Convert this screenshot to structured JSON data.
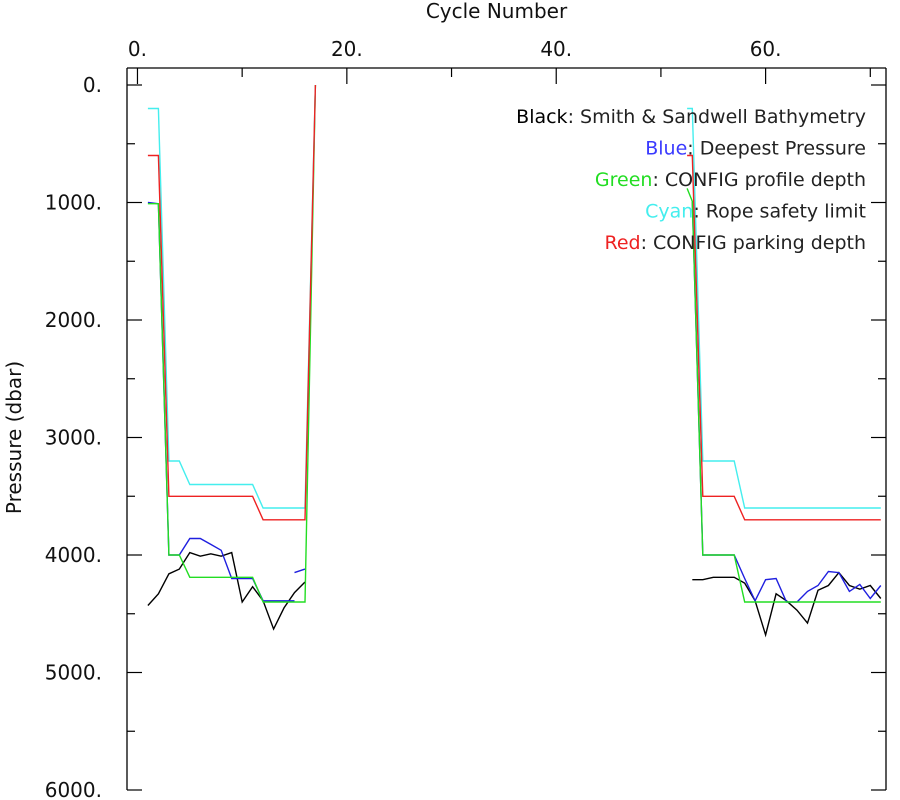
{
  "chart_data": {
    "type": "line",
    "xlabel": "Cycle Number",
    "ylabel": "Pressure (dbar)",
    "xlim": [
      -1,
      71.5
    ],
    "ylim": [
      0,
      6000
    ],
    "y_inverted": true,
    "x_axis_position": "top",
    "x_major_ticks": [
      0,
      20,
      40,
      60
    ],
    "x_tick_labels": [
      "0.",
      "20.",
      "40.",
      "60."
    ],
    "x_minor_ticks": [
      10,
      30,
      50,
      70
    ],
    "y_major_ticks": [
      0,
      1000,
      2000,
      3000,
      4000,
      5000,
      6000
    ],
    "y_tick_labels": [
      "0.",
      "1000.",
      "2000.",
      "3000.",
      "4000.",
      "5000.",
      "6000."
    ],
    "y_minor_ticks": [
      500,
      1500,
      2500,
      3500,
      4500,
      5500
    ],
    "grid": false,
    "legend_position": "top-right",
    "legend": [
      {
        "key": "Black",
        "text": ": Smith & Sandwell Bathymetry",
        "key_color": "#000000"
      },
      {
        "key": "Blue",
        "text": ": Deepest Pressure",
        "key_color": "#3a3aff"
      },
      {
        "key": "Green",
        "text": ": CONFIG profile depth",
        "key_color": "#22dd22"
      },
      {
        "key": "Cyan",
        "text": ": Rope safety limit",
        "key_color": "#44eeee"
      },
      {
        "key": "Red",
        "text": ": CONFIG parking depth",
        "key_color": "#ee2222"
      }
    ],
    "series": [
      {
        "color": "#000000",
        "segments": [
          [
            [
              1,
              4430
            ],
            [
              2,
              4330
            ],
            [
              3,
              4160
            ],
            [
              4,
              4120
            ],
            [
              5,
              3980
            ],
            [
              6,
              4010
            ],
            [
              7,
              3990
            ],
            [
              8,
              4010
            ],
            [
              9,
              3980
            ],
            [
              10,
              4400
            ],
            [
              11,
              4270
            ],
            [
              12,
              4390
            ],
            [
              13,
              4630
            ],
            [
              14,
              4450
            ],
            [
              15,
              4320
            ],
            [
              16,
              4230
            ]
          ],
          [
            [
              53,
              4210
            ],
            [
              54,
              4210
            ],
            [
              55,
              4190
            ],
            [
              56,
              4190
            ],
            [
              57,
              4190
            ],
            [
              58,
              4240
            ],
            [
              59,
              4390
            ],
            [
              60,
              4680
            ],
            [
              61,
              4330
            ],
            [
              62,
              4390
            ],
            [
              63,
              4470
            ],
            [
              64,
              4580
            ],
            [
              65,
              4300
            ],
            [
              66,
              4260
            ],
            [
              67,
              4150
            ],
            [
              68,
              4260
            ],
            [
              69,
              4290
            ],
            [
              70,
              4260
            ],
            [
              71,
              4370
            ]
          ]
        ]
      },
      {
        "color": "#1f1fdf",
        "segments": [
          [
            [
              1,
              1000
            ],
            [
              2,
              1010
            ],
            [
              3,
              4000
            ],
            [
              4,
              4000
            ],
            [
              5,
              3860
            ],
            [
              6,
              3860
            ],
            [
              7,
              3910
            ],
            [
              8,
              3960
            ],
            [
              9,
              4200
            ],
            [
              10,
              4200
            ],
            [
              11,
              4200
            ],
            [
              12,
              4390
            ],
            [
              13,
              4390
            ],
            [
              14,
              4390
            ],
            [
              15,
              4390
            ]
          ],
          [
            [
              15,
              4150
            ],
            [
              16,
              4120
            ]
          ],
          [
            [
              53,
              990
            ],
            [
              54,
              4000
            ],
            [
              55,
              4000
            ],
            [
              56,
              4000
            ],
            [
              57,
              4000
            ],
            [
              58,
              4200
            ],
            [
              59,
              4390
            ],
            [
              60,
              4210
            ],
            [
              61,
              4200
            ],
            [
              62,
              4400
            ],
            [
              63,
              4400
            ],
            [
              64,
              4310
            ],
            [
              65,
              4260
            ],
            [
              66,
              4140
            ],
            [
              67,
              4150
            ],
            [
              68,
              4310
            ],
            [
              69,
              4250
            ],
            [
              70,
              4370
            ],
            [
              71,
              4260
            ]
          ]
        ]
      },
      {
        "color": "#22dd22",
        "segments": [
          [
            [
              1,
              1010
            ],
            [
              2,
              1010
            ],
            [
              3,
              4000
            ],
            [
              4,
              4000
            ],
            [
              5,
              4190
            ],
            [
              6,
              4190
            ],
            [
              7,
              4190
            ],
            [
              8,
              4190
            ],
            [
              9,
              4190
            ],
            [
              10,
              4190
            ],
            [
              11,
              4190
            ],
            [
              12,
              4400
            ],
            [
              13,
              4400
            ],
            [
              14,
              4400
            ],
            [
              15,
              4400
            ],
            [
              16,
              4400
            ],
            [
              17,
              0
            ]
          ],
          [
            [
              52.5,
              880
            ],
            [
              53,
              990
            ],
            [
              54,
              4000
            ],
            [
              55,
              4000
            ],
            [
              56,
              4000
            ],
            [
              57,
              4000
            ],
            [
              58,
              4400
            ],
            [
              59,
              4400
            ],
            [
              60,
              4400
            ],
            [
              61,
              4400
            ],
            [
              62,
              4400
            ],
            [
              63,
              4400
            ],
            [
              64,
              4400
            ],
            [
              65,
              4400
            ],
            [
              66,
              4400
            ],
            [
              67,
              4400
            ],
            [
              68,
              4400
            ],
            [
              69,
              4400
            ],
            [
              70,
              4400
            ],
            [
              71,
              4400
            ]
          ]
        ]
      },
      {
        "color": "#44eeee",
        "segments": [
          [
            [
              1,
              200
            ],
            [
              2,
              200
            ],
            [
              3,
              3200
            ],
            [
              4,
              3200
            ],
            [
              5,
              3400
            ],
            [
              6,
              3400
            ],
            [
              7,
              3400
            ],
            [
              8,
              3400
            ],
            [
              9,
              3400
            ],
            [
              10,
              3400
            ],
            [
              11,
              3400
            ],
            [
              12,
              3600
            ],
            [
              13,
              3600
            ],
            [
              14,
              3600
            ],
            [
              15,
              3600
            ],
            [
              16,
              3600
            ],
            [
              17,
              0
            ]
          ],
          [
            [
              52.5,
              200
            ],
            [
              53,
              200
            ],
            [
              54,
              3200
            ],
            [
              55,
              3200
            ],
            [
              56,
              3200
            ],
            [
              57,
              3200
            ],
            [
              58,
              3600
            ],
            [
              59,
              3600
            ],
            [
              60,
              3600
            ],
            [
              61,
              3600
            ],
            [
              62,
              3600
            ],
            [
              63,
              3600
            ],
            [
              64,
              3600
            ],
            [
              65,
              3600
            ],
            [
              66,
              3600
            ],
            [
              67,
              3600
            ],
            [
              68,
              3600
            ],
            [
              69,
              3600
            ],
            [
              70,
              3600
            ],
            [
              71,
              3600
            ]
          ]
        ]
      },
      {
        "color": "#ee2222",
        "segments": [
          [
            [
              1,
              600
            ],
            [
              2,
              600
            ],
            [
              3,
              3500
            ],
            [
              4,
              3500
            ],
            [
              5,
              3500
            ],
            [
              6,
              3500
            ],
            [
              7,
              3500
            ],
            [
              8,
              3500
            ],
            [
              9,
              3500
            ],
            [
              10,
              3500
            ],
            [
              11,
              3500
            ],
            [
              12,
              3700
            ],
            [
              13,
              3700
            ],
            [
              14,
              3700
            ],
            [
              15,
              3700
            ],
            [
              16,
              3700
            ],
            [
              17,
              0
            ]
          ],
          [
            [
              52.5,
              600
            ],
            [
              53,
              600
            ],
            [
              54,
              3500
            ],
            [
              55,
              3500
            ],
            [
              56,
              3500
            ],
            [
              57,
              3500
            ],
            [
              58,
              3700
            ],
            [
              59,
              3700
            ],
            [
              60,
              3700
            ],
            [
              61,
              3700
            ],
            [
              62,
              3700
            ],
            [
              63,
              3700
            ],
            [
              64,
              3700
            ],
            [
              65,
              3700
            ],
            [
              66,
              3700
            ],
            [
              67,
              3700
            ],
            [
              68,
              3700
            ],
            [
              69,
              3700
            ],
            [
              70,
              3700
            ],
            [
              71,
              3700
            ]
          ]
        ]
      }
    ]
  }
}
